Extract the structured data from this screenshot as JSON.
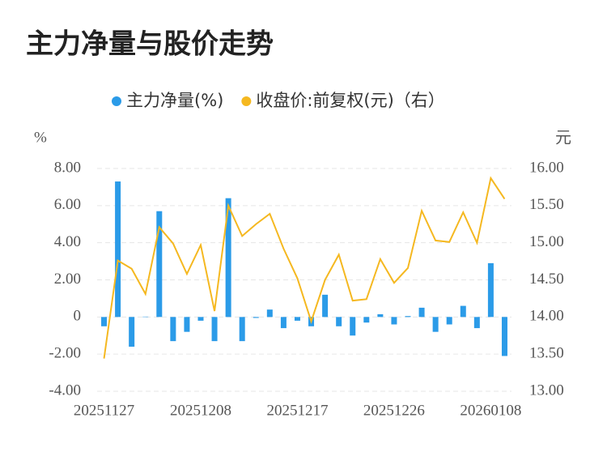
{
  "chart_data": {
    "type": "combo",
    "title": "主力净量与股价走势",
    "y_label": "%",
    "y2_label": "元",
    "categories": [
      "20251127",
      null,
      null,
      null,
      null,
      null,
      null,
      "20251208",
      null,
      null,
      null,
      null,
      null,
      null,
      "20251217",
      null,
      null,
      null,
      null,
      null,
      null,
      "20251226",
      null,
      null,
      null,
      null,
      null,
      null,
      "20260108",
      null
    ],
    "series": [
      {
        "name": "主力净量(%)",
        "type": "bar",
        "color": "#2b9be8",
        "values": [
          -0.5,
          7.3,
          -1.6,
          0.02,
          5.7,
          -1.3,
          -0.8,
          -0.2,
          -1.3,
          6.4,
          -1.3,
          -0.05,
          0.4,
          -0.6,
          -0.2,
          -0.5,
          1.2,
          -0.5,
          -1.0,
          -0.3,
          0.15,
          -0.4,
          0.05,
          0.5,
          -0.8,
          -0.4,
          0.6,
          -0.6,
          2.9,
          -2.1
        ]
      },
      {
        "name": "收盘价:前复权(元)（右）",
        "type": "line",
        "axis": "y2",
        "color": "#f5b820",
        "values": [
          13.44,
          14.76,
          14.65,
          14.31,
          15.21,
          14.99,
          14.58,
          14.97,
          14.08,
          15.5,
          15.09,
          15.25,
          15.39,
          14.92,
          14.52,
          13.94,
          14.5,
          14.84,
          14.22,
          14.24,
          14.78,
          14.46,
          14.66,
          15.43,
          15.03,
          15.01,
          15.41,
          15.0,
          15.87,
          15.59
        ]
      }
    ],
    "ylim": [
      -4,
      8
    ],
    "yticks": [
      {
        "value": -4,
        "label": "-4.00"
      },
      {
        "value": -2,
        "label": "-2.00"
      },
      0,
      {
        "value": 2,
        "label": "2.00"
      },
      {
        "value": 4,
        "label": "4.00"
      },
      {
        "value": 6,
        "label": "6.00"
      },
      {
        "value": 8,
        "label": "8.00"
      }
    ],
    "y2lim": [
      13,
      16
    ],
    "y2ticks": [
      {
        "value": 13,
        "label": "13.00"
      },
      {
        "value": 13.5,
        "label": "13.50"
      },
      {
        "value": 14,
        "label": "14.00"
      },
      {
        "value": 14.5,
        "label": "14.50"
      },
      {
        "value": 15,
        "label": "15.00"
      },
      {
        "value": 15.5,
        "label": "15.50"
      },
      {
        "value": 16,
        "label": "16.00"
      }
    ],
    "grid": true
  }
}
